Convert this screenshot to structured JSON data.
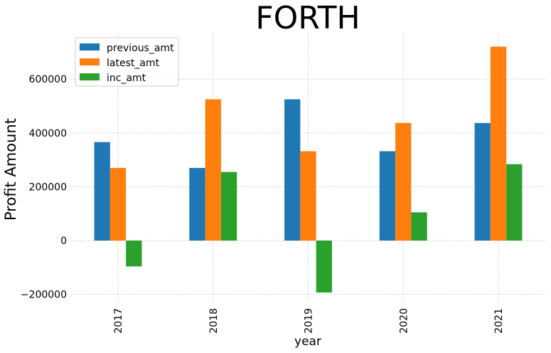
{
  "chart_data": {
    "type": "bar",
    "title": "FORTH",
    "xlabel": "year",
    "ylabel": "Profit Amount",
    "categories": [
      "2017",
      "2018",
      "2019",
      "2020",
      "2021"
    ],
    "series": [
      {
        "name": "previous_amt",
        "color": "#1f77b4",
        "values": [
          366000,
          270000,
          525000,
          332000,
          437000
        ]
      },
      {
        "name": "latest_amt",
        "color": "#ff7f0e",
        "values": [
          270000,
          525000,
          332000,
          437000,
          721000
        ]
      },
      {
        "name": "inc_amt",
        "color": "#2ca02c",
        "values": [
          -96000,
          255000,
          -193000,
          105000,
          284000
        ]
      }
    ],
    "ylim": [
      -230000,
      775000
    ],
    "yticks": [
      -200000,
      0,
      200000,
      400000,
      600000
    ],
    "ytick_labels": [
      "−200000",
      "0",
      "200000",
      "400000",
      "600000"
    ],
    "grid": true,
    "legend_position": "upper-left"
  }
}
